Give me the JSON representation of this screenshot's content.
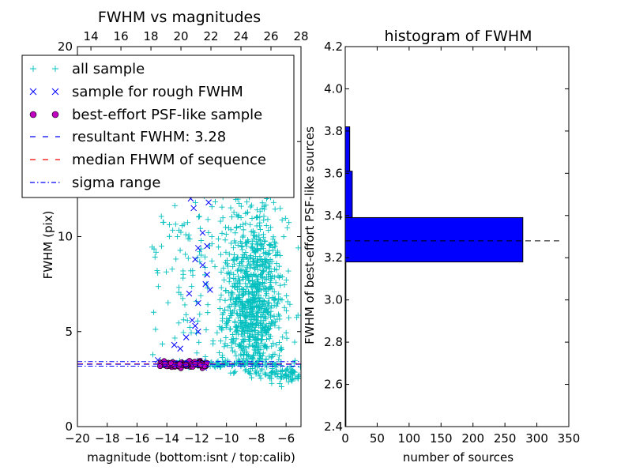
{
  "chart_data": [
    {
      "type": "scatter",
      "title": "FWHM vs magnitudes",
      "xlabel": "magnitude (bottom:isnt / top:calib)",
      "ylabel": "FWHM (pix)",
      "xlim": [
        -20,
        -5
      ],
      "ylim": [
        0,
        20
      ],
      "top_xlim": [
        13.1,
        28.0
      ],
      "x_ticks": [
        -20,
        -18,
        -16,
        -14,
        -12,
        -10,
        -8,
        -6
      ],
      "x_tick_labels": [
        "−20",
        "−18",
        "−16",
        "−14",
        "−12",
        "−10",
        "−8",
        "−6"
      ],
      "y_ticks": [
        0,
        5,
        10,
        15,
        20
      ],
      "y_tick_labels": [
        "0",
        "5",
        "10",
        "15",
        "20"
      ],
      "top_ticks": [
        14,
        16,
        18,
        20,
        22,
        24,
        26,
        28
      ],
      "top_tick_labels": [
        "14",
        "16",
        "18",
        "20",
        "22",
        "24",
        "26",
        "28"
      ],
      "grid": false,
      "legend_position": "upper-left",
      "legend": [
        {
          "label": "all sample",
          "marker": "+",
          "color": "#00bfbf"
        },
        {
          "label": "sample for rough FWHM",
          "marker": "x",
          "color": "#0000ff"
        },
        {
          "label": "best-effort PSF-like sample",
          "marker": "o",
          "color": "#bf00bf"
        },
        {
          "label": "resultant FWHM: 3.28",
          "line": "dashed",
          "color": "#0000ff"
        },
        {
          "label": "median FHWM of sequence",
          "line": "dashed",
          "color": "#ff0000"
        },
        {
          "label": "sigma range",
          "line": "dashdot",
          "color": "#0000ff"
        }
      ],
      "series": [
        {
          "name": "all sample",
          "marker": "+",
          "color": "#00bfbf",
          "clusters": [
            {
              "x_range": [
                -10.5,
                -5.0
              ],
              "center_x": -8.2,
              "spread_x": 1.0,
              "center_y": 6.2,
              "spread_y": 2.4,
              "y_range": [
                2.5,
                20.0
              ],
              "count": 900
            },
            {
              "x_range": [
                -10.8,
                -5.0
              ],
              "center_x": -8.8,
              "spread_x": 1.3,
              "center_y": 11.5,
              "spread_y": 4.5,
              "y_range": [
                3.0,
                20.0
              ],
              "count": 220
            },
            {
              "x_range": [
                -15.0,
                -10.0
              ],
              "center_x": -12.5,
              "spread_x": 1.3,
              "center_y": 9.5,
              "spread_y": 4.5,
              "y_range": [
                3.5,
                19.0
              ],
              "count": 160
            },
            {
              "x_range": [
                -14.8,
                -6.0
              ],
              "center_x": -10.5,
              "spread_x": 2.5,
              "center_y": 3.3,
              "spread_y": 0.08,
              "y_range": [
                3.1,
                3.5
              ],
              "count": 120
            },
            {
              "x_range": [
                -7.5,
                -5.0
              ],
              "center_x": -6.0,
              "spread_x": 0.7,
              "center_y": 2.8,
              "spread_y": 0.3,
              "y_range": [
                2.0,
                3.5
              ],
              "count": 80
            }
          ]
        },
        {
          "name": "sample for rough FWHM",
          "marker": "x",
          "color": "#0000ff",
          "points": [
            [
              -14.6,
              3.5
            ],
            [
              -14.3,
              3.4
            ],
            [
              -14.0,
              3.3
            ],
            [
              -13.5,
              3.35
            ],
            [
              -13.1,
              4.1
            ],
            [
              -12.7,
              4.7
            ],
            [
              -12.3,
              5.6
            ],
            [
              -12.1,
              5.3
            ],
            [
              -11.9,
              5.0
            ],
            [
              -11.6,
              3.4
            ],
            [
              -11.9,
              9.4
            ],
            [
              -12.2,
              11.5
            ],
            [
              -12.1,
              8.8
            ],
            [
              -11.6,
              10.2
            ],
            [
              -11.3,
              8.0
            ],
            [
              -11.1,
              7.2
            ],
            [
              -11.6,
              8.5
            ],
            [
              -12.4,
              12.0
            ],
            [
              -11.9,
              14.0
            ],
            [
              -11.3,
              9.5
            ],
            [
              -12.5,
              7.0
            ],
            [
              -11.9,
              6.5
            ],
            [
              -12.6,
              14.5
            ],
            [
              -11.6,
              15.2
            ],
            [
              -12.9,
              16.3
            ],
            [
              -11.2,
              11.8
            ],
            [
              -13.5,
              4.3
            ],
            [
              -11.4,
              7.5
            ],
            [
              -11.8,
              12.8
            ],
            [
              -12.8,
              3.4
            ],
            [
              -11.4,
              3.3
            ],
            [
              -11.5,
              3.1
            ],
            [
              -12.6,
              3.35
            ],
            [
              -13.0,
              3.25
            ],
            [
              -11.8,
              3.45
            ]
          ]
        },
        {
          "name": "best-effort PSF-like sample",
          "marker": "o",
          "color": "#bf00bf",
          "cluster": {
            "x_range": [
              -14.5,
              -11.3
            ],
            "y_center": 3.28,
            "y_spread": 0.07,
            "count": 130
          }
        }
      ],
      "lines": {
        "resultant_fwhm": 3.28,
        "median_fwhm": 3.3,
        "sigma_range": [
          3.18,
          3.42
        ]
      }
    },
    {
      "type": "bar",
      "orientation": "horizontal",
      "title": "histogram of FWHM",
      "xlabel": "number of sources",
      "ylabel": "FWHM of best-effort PSF-like sources",
      "xlim": [
        0,
        350
      ],
      "ylim": [
        2.4,
        4.2
      ],
      "x_ticks": [
        0,
        50,
        100,
        150,
        200,
        250,
        300,
        350
      ],
      "x_tick_labels": [
        "0",
        "50",
        "100",
        "150",
        "200",
        "250",
        "300",
        "350"
      ],
      "y_ticks": [
        2.4,
        2.6,
        2.8,
        3.0,
        3.2,
        3.4,
        3.6,
        3.8,
        4.0,
        4.2
      ],
      "y_tick_labels": [
        "2.4",
        "2.6",
        "2.8",
        "3.0",
        "3.2",
        "3.4",
        "3.6",
        "3.8",
        "4.0",
        "4.2"
      ],
      "bins": [
        {
          "from": 2.4,
          "to": 3.18,
          "count": 1
        },
        {
          "from": 3.18,
          "to": 3.39,
          "count": 278
        },
        {
          "from": 3.39,
          "to": 3.61,
          "count": 11
        },
        {
          "from": 3.61,
          "to": 3.82,
          "count": 7
        }
      ],
      "bar_color": "#0000ff",
      "reference_line": {
        "value": 3.28,
        "x_range": [
          0,
          335
        ],
        "style": "dashed",
        "color": "#000000"
      }
    }
  ]
}
